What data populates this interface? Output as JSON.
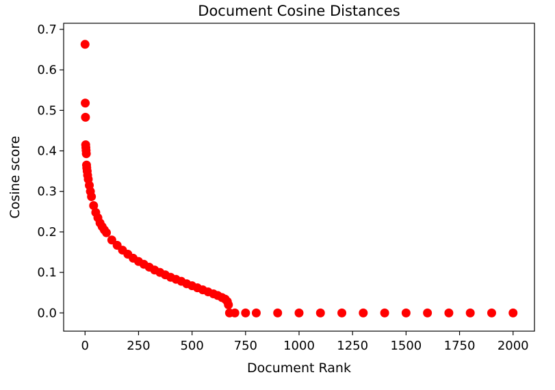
{
  "chart_data": {
    "type": "scatter",
    "title": "Document Cosine Distances",
    "xlabel": "Document Rank",
    "ylabel": "Cosine score",
    "xlim": [
      -100,
      2100
    ],
    "ylim": [
      -0.045,
      0.715
    ],
    "xticks": [
      0,
      250,
      500,
      750,
      1000,
      1250,
      1500,
      1750,
      2000
    ],
    "yticks": [
      0.0,
      0.1,
      0.2,
      0.3,
      0.4,
      0.5,
      0.6,
      0.7
    ],
    "ytick_labels": [
      "0.0",
      "0.1",
      "0.2",
      "0.3",
      "0.4",
      "0.5",
      "0.6",
      "0.7"
    ],
    "grid": false,
    "legend": "none",
    "marker_color": "#ff0000",
    "series": [
      {
        "x": [
          0,
          1,
          2,
          3,
          4,
          5,
          6,
          7,
          8,
          10,
          12,
          15,
          20,
          25,
          30,
          40,
          50,
          60,
          70,
          80,
          90,
          100,
          125,
          150,
          175,
          200,
          225,
          250,
          275,
          300,
          325,
          350,
          375,
          400,
          425,
          450,
          475,
          500,
          525,
          550,
          575,
          600,
          620,
          640,
          655,
          665,
          670,
          675,
          700,
          750,
          800,
          900,
          1000,
          1100,
          1200,
          1300,
          1400,
          1500,
          1600,
          1700,
          1800,
          1900,
          2000
        ],
        "y": [
          0.663,
          0.518,
          0.483,
          0.415,
          0.408,
          0.401,
          0.393,
          0.365,
          0.358,
          0.35,
          0.34,
          0.33,
          0.315,
          0.3,
          0.287,
          0.265,
          0.248,
          0.235,
          0.222,
          0.213,
          0.205,
          0.198,
          0.18,
          0.167,
          0.155,
          0.145,
          0.135,
          0.127,
          0.12,
          0.113,
          0.106,
          0.1,
          0.094,
          0.088,
          0.083,
          0.078,
          0.072,
          0.067,
          0.062,
          0.057,
          0.052,
          0.047,
          0.043,
          0.038,
          0.034,
          0.028,
          0.02,
          0.0,
          0.0,
          0.0,
          0.0,
          0.0,
          0.0,
          0.0,
          0.0,
          0.0,
          0.0,
          0.0,
          0.0,
          0.0,
          0.0,
          0.0,
          0.0
        ]
      }
    ]
  }
}
